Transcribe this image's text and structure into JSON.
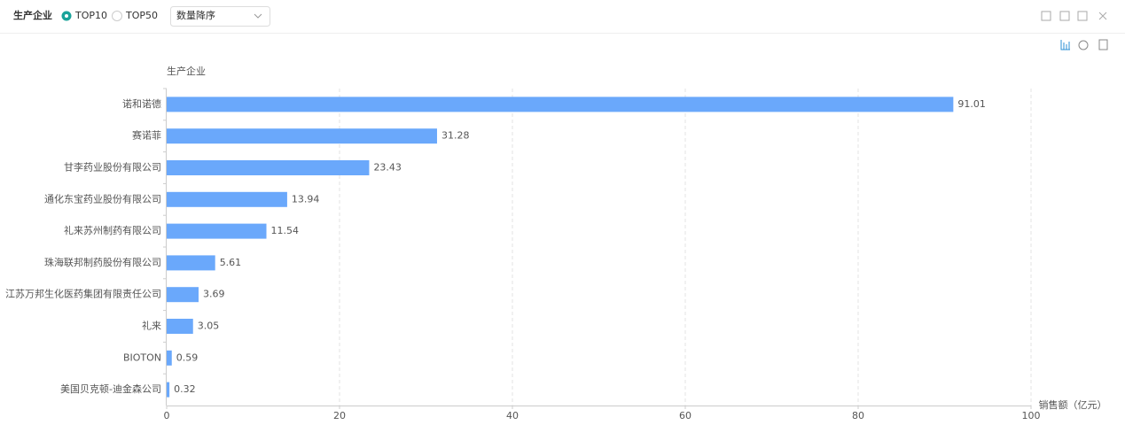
{
  "header": {
    "title": "生产企业",
    "options": [
      "TOP10",
      "TOP50"
    ],
    "sort": "数量降序"
  },
  "chart_data": {
    "type": "bar",
    "orientation": "horizontal",
    "y_label": "生产企业",
    "x_label": "销售额（亿元）",
    "categories": [
      "诺和诺德",
      "赛诺菲",
      "甘李药业股份有限公司",
      "通化东宝药业股份有限公司",
      "礼来苏州制药有限公司",
      "珠海联邦制药股份有限公司",
      "江苏万邦生化医药集团有限责任公司",
      "礼来",
      "BIOTON",
      "美国贝克顿-迪金森公司"
    ],
    "values": [
      91.01,
      31.28,
      23.43,
      13.94,
      11.54,
      5.61,
      3.69,
      3.05,
      0.59,
      0.32
    ],
    "color": "#6aa8fb",
    "xlim": [
      0,
      100
    ],
    "xticks": [
      0,
      20,
      40,
      60,
      80,
      100
    ],
    "grid": true
  }
}
